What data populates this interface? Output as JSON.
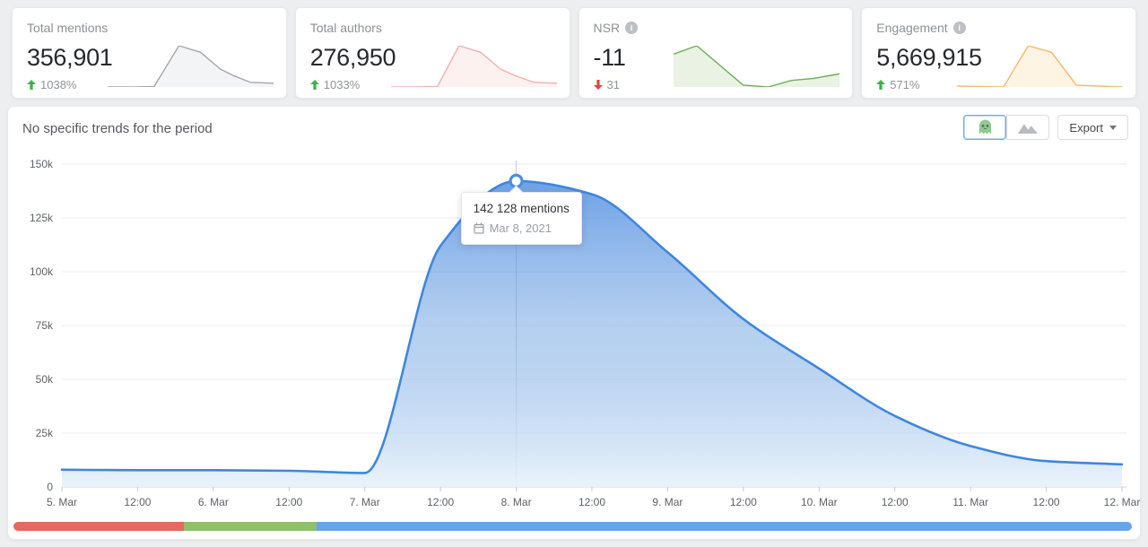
{
  "icons": {
    "trend_up": "arrow-up-icon",
    "trend_down": "arrow-down-icon",
    "info": "info-icon",
    "toggle_active": "ghost-icon",
    "toggle_inactive": "mountain-chart-icon",
    "export_caret": "caret-down-icon",
    "tooltip_date": "calendar-icon"
  },
  "trend_colors": {
    "up": "#3cb24c",
    "down": "#e2453c"
  },
  "stat_cards": [
    {
      "label": "Total mentions",
      "value": "356,901",
      "change": "1038%",
      "trend": "up",
      "info": false,
      "sparkline": {
        "line_color": "#a2a7ad",
        "fill_color": "#f3f4f6",
        "points": [
          [
            0,
            44
          ],
          [
            15,
            44
          ],
          [
            28,
            43.5
          ],
          [
            43,
            0
          ],
          [
            56,
            7
          ],
          [
            68,
            25
          ],
          [
            76,
            32
          ],
          [
            86,
            39
          ],
          [
            100,
            40
          ]
        ]
      }
    },
    {
      "label": "Total authors",
      "value": "276,950",
      "change": "1033%",
      "trend": "up",
      "info": false,
      "sparkline": {
        "line_color": "#f3afab",
        "fill_color": "#fdf1f0",
        "points": [
          [
            0,
            44
          ],
          [
            15,
            44
          ],
          [
            28,
            43.5
          ],
          [
            41,
            0
          ],
          [
            54,
            7
          ],
          [
            66,
            25
          ],
          [
            75,
            32
          ],
          [
            86,
            39
          ],
          [
            100,
            40
          ]
        ]
      }
    },
    {
      "label": "NSR",
      "value": "-11",
      "change": "31",
      "trend": "down",
      "info": true,
      "sparkline": {
        "line_color": "#6db153",
        "fill_color": "#e9f2e3",
        "points": [
          [
            0,
            9
          ],
          [
            14,
            0
          ],
          [
            42,
            42
          ],
          [
            57,
            44
          ],
          [
            71,
            37
          ],
          [
            84,
            35
          ],
          [
            100,
            30
          ]
        ]
      }
    },
    {
      "label": "Engagement",
      "value": "5,669,915",
      "change": "571%",
      "trend": "up",
      "info": true,
      "sparkline": {
        "line_color": "#f4ba69",
        "fill_color": "#fdf4e4",
        "points": [
          [
            0,
            43
          ],
          [
            28,
            44
          ],
          [
            43,
            0
          ],
          [
            57,
            7
          ],
          [
            72,
            42
          ],
          [
            100,
            44
          ]
        ]
      }
    }
  ],
  "chart_panel": {
    "message": "No specific trends for the period",
    "export_label": "Export",
    "tooltip": {
      "title": "142 128 mentions",
      "date": "Mar 8, 2021"
    }
  },
  "chart_data": {
    "type": "area",
    "x": [
      "5. Mar",
      "12:00",
      "6. Mar",
      "12:00",
      "7. Mar",
      "12:00",
      "8. Mar",
      "12:00",
      "9. Mar",
      "12:00",
      "10. Mar",
      "12:00",
      "11. Mar",
      "12:00",
      "12. Mar"
    ],
    "values": [
      8000,
      7800,
      7800,
      7500,
      6500,
      112000,
      142128,
      136000,
      109000,
      78000,
      55000,
      33000,
      19000,
      12000,
      10500
    ],
    "y_ticks": [
      "0",
      "25k",
      "50k",
      "75k",
      "100k",
      "125k",
      "150k"
    ],
    "ylim": [
      0,
      150000
    ],
    "grid": true,
    "legend": "none",
    "line_color": "#3e87de",
    "fill_top": "rgba(66,133,222,0.82)",
    "fill_mid": "rgba(120,168,228,0.55)",
    "fill_bottom": "rgba(232,242,251,0.9)",
    "highlight": {
      "index": 6,
      "value": 142128
    }
  },
  "scrollbar": {
    "segments": [
      {
        "color": "#e4695e",
        "pct": 15.2
      },
      {
        "color": "#8fc06d",
        "pct": 11.9
      },
      {
        "color": "#68a4e6",
        "pct": 72.9
      }
    ]
  }
}
